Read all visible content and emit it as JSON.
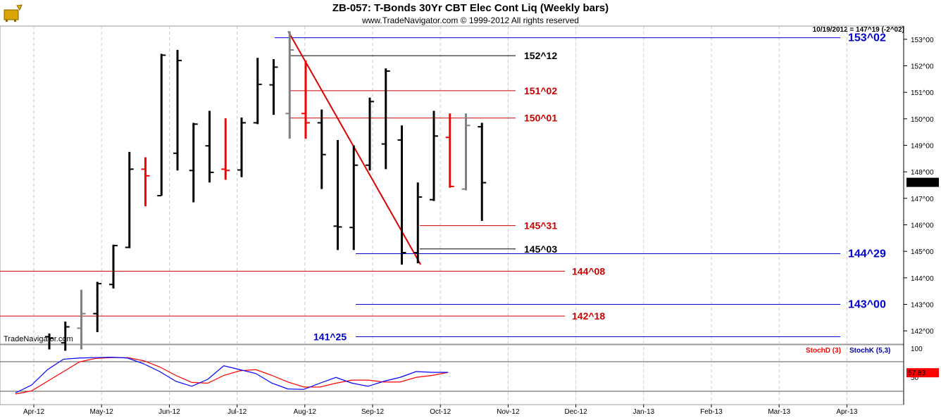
{
  "header": {
    "title": "ZB-057:  T-Bonds 30Yr CBT Elec Cont Liq  (Weekly bars)",
    "subtitle": "www.TradeNavigator.com © 1999-2012 All rights reserved",
    "readout": "10/19/2012 = 147^19 (-2^02)",
    "watermark": "TradeNavigator.com",
    "logo_icon": "bull-logo-icon"
  },
  "colors": {
    "up_bar": "#000000",
    "red_bar": "#ff0000",
    "gray_bar": "#808080",
    "blue_level": "#0000cc",
    "red_level": "#cc0000",
    "black_level": "#000000",
    "trendline": "#dd0000",
    "stoch_d": "#ff0000",
    "stoch_k": "#0000ff"
  },
  "chart_data": {
    "type": "ohlc",
    "title": "ZB-057:  T-Bonds 30Yr CBT Elec Cont Liq  (Weekly bars)",
    "xlabel": "",
    "ylabel": "",
    "ylim": [
      141.5,
      153.5
    ],
    "y_ticks": [
      "142^00",
      "143^00",
      "144^00",
      "145^00",
      "146^00",
      "147^00",
      "148^00",
      "149^00",
      "150^00",
      "151^00",
      "152^00",
      "153^00"
    ],
    "x_ticks": [
      "Apr-12",
      "May-12",
      "Jun-12",
      "Jul-12",
      "Aug-12",
      "Sep-12",
      "Oct-12",
      "Nov-12",
      "Dec-12",
      "Jan-13",
      "Feb-13",
      "Mar-13",
      "Apr-13"
    ],
    "last_price_label": "147^19",
    "bars": [
      {
        "week": 1,
        "open": 141.78,
        "high": 141.9,
        "low": 141.3,
        "close": 141.72,
        "color": "black"
      },
      {
        "week": 2,
        "open": 141.55,
        "high": 142.35,
        "low": 141.25,
        "close": 142.15,
        "color": "black"
      },
      {
        "week": 3,
        "open": 142.1,
        "high": 143.55,
        "low": 141.3,
        "close": 142.65,
        "color": "gray"
      },
      {
        "week": 4,
        "open": 142.65,
        "high": 143.85,
        "low": 141.95,
        "close": 143.78,
        "color": "black"
      },
      {
        "week": 5,
        "open": 143.75,
        "high": 145.25,
        "low": 143.6,
        "close": 145.22,
        "color": "black"
      },
      {
        "week": 6,
        "open": 145.15,
        "high": 148.75,
        "low": 145.12,
        "close": 148.1,
        "color": "black"
      },
      {
        "week": 7,
        "open": 148.1,
        "high": 148.55,
        "low": 146.7,
        "close": 147.85,
        "color": "red"
      },
      {
        "week": 8,
        "open": 147.1,
        "high": 152.45,
        "low": 147.1,
        "close": 152.4,
        "color": "black"
      },
      {
        "week": 9,
        "open": 148.7,
        "high": 152.6,
        "low": 148.05,
        "close": 152.2,
        "color": "black"
      },
      {
        "week": 10,
        "open": 148.05,
        "high": 149.85,
        "low": 146.85,
        "close": 149.8,
        "color": "black"
      },
      {
        "week": 11,
        "open": 148.98,
        "high": 150.3,
        "low": 147.6,
        "close": 147.98,
        "color": "black"
      },
      {
        "week": 12,
        "open": 148.1,
        "high": 150.02,
        "low": 147.7,
        "close": 148.05,
        "color": "red"
      },
      {
        "week": 13,
        "open": 148.07,
        "high": 150.05,
        "low": 147.8,
        "close": 149.85,
        "color": "black"
      },
      {
        "week": 14,
        "open": 149.85,
        "high": 152.3,
        "low": 149.8,
        "close": 151.3,
        "color": "black"
      },
      {
        "week": 15,
        "open": 151.28,
        "high": 152.25,
        "low": 150.15,
        "close": 151.95,
        "color": "black"
      },
      {
        "week": 16,
        "open": 150.2,
        "high": 153.3,
        "low": 149.25,
        "close": 152.6,
        "color": "gray"
      },
      {
        "week": 17,
        "open": 150.2,
        "high": 152.2,
        "low": 149.25,
        "close": 149.85,
        "color": "red"
      },
      {
        "week": 18,
        "open": 149.85,
        "high": 150.35,
        "low": 147.35,
        "close": 148.65,
        "color": "black"
      },
      {
        "week": 19,
        "open": 145.95,
        "high": 149.2,
        "low": 145.05,
        "close": 145.92,
        "color": "black"
      },
      {
        "week": 20,
        "open": 145.9,
        "high": 149.0,
        "low": 145.05,
        "close": 148.25,
        "color": "black"
      },
      {
        "week": 21,
        "open": 148.25,
        "high": 150.8,
        "low": 148.05,
        "close": 150.65,
        "color": "black"
      },
      {
        "week": 22,
        "open": 149.05,
        "high": 151.9,
        "low": 148.1,
        "close": 151.8,
        "color": "black"
      },
      {
        "week": 23,
        "open": 149.2,
        "high": 149.75,
        "low": 144.5,
        "close": 144.95,
        "color": "black"
      },
      {
        "week": 24,
        "open": 144.95,
        "high": 147.6,
        "low": 144.55,
        "close": 147.05,
        "color": "black"
      },
      {
        "week": 25,
        "open": 146.95,
        "high": 150.3,
        "low": 146.9,
        "close": 149.35,
        "color": "black"
      },
      {
        "week": 26,
        "open": 149.3,
        "high": 150.2,
        "low": 147.4,
        "close": 147.45,
        "color": "red"
      },
      {
        "week": 27,
        "open": 147.35,
        "high": 150.2,
        "low": 147.3,
        "close": 149.75,
        "color": "gray"
      },
      {
        "week": 28,
        "open": 149.7,
        "high": 149.85,
        "low": 146.15,
        "close": 147.59,
        "color": "black"
      }
    ],
    "levels": [
      {
        "label": "153^02",
        "value": 153.06,
        "color": "blue",
        "span": "wide",
        "big": true
      },
      {
        "label": "152^12",
        "value": 152.38,
        "color": "black",
        "span": "mid",
        "big": false
      },
      {
        "label": "151^02",
        "value": 151.06,
        "color": "red",
        "span": "mid",
        "big": false
      },
      {
        "label": "150^01",
        "value": 150.03,
        "color": "red",
        "span": "mid",
        "big": false
      },
      {
        "label": "145^31",
        "value": 145.97,
        "color": "red",
        "span": "short",
        "big": false
      },
      {
        "label": "145^03",
        "value": 145.09,
        "color": "black",
        "span": "short",
        "big": false
      },
      {
        "label": "144^29",
        "value": 144.91,
        "color": "blue",
        "span": "right",
        "big": true
      },
      {
        "label": "144^08",
        "value": 144.25,
        "color": "red",
        "span": "left",
        "big": false
      },
      {
        "label": "143^00",
        "value": 143.0,
        "color": "blue",
        "span": "right",
        "big": true
      },
      {
        "label": "142^18",
        "value": 142.56,
        "color": "red",
        "span": "left",
        "big": false
      },
      {
        "label": "141^25",
        "value": 141.78,
        "color": "blue",
        "span": "right",
        "big": true
      }
    ],
    "trendline": {
      "from": {
        "week": 16,
        "value": 153.3
      },
      "to": {
        "week": 24,
        "value": 144.5
      }
    },
    "stochastic": {
      "labels": [
        "StochD (3)",
        "StochK (5,3)"
      ],
      "scale_label": "100",
      "last_value_label": "57.83",
      "ylim": [
        0,
        100
      ],
      "stoch_k": [
        5,
        25,
        65,
        92,
        95,
        96,
        97,
        95,
        80,
        60,
        35,
        22,
        40,
        75,
        65,
        55,
        30,
        15,
        14,
        30,
        45,
        30,
        22,
        35,
        45,
        60,
        58,
        58
      ],
      "stoch_d": [
        2,
        10,
        35,
        60,
        85,
        94,
        96,
        96,
        88,
        72,
        50,
        32,
        30,
        50,
        62,
        65,
        50,
        33,
        20,
        20,
        30,
        38,
        38,
        33,
        33,
        45,
        50,
        57.83
      ]
    }
  }
}
